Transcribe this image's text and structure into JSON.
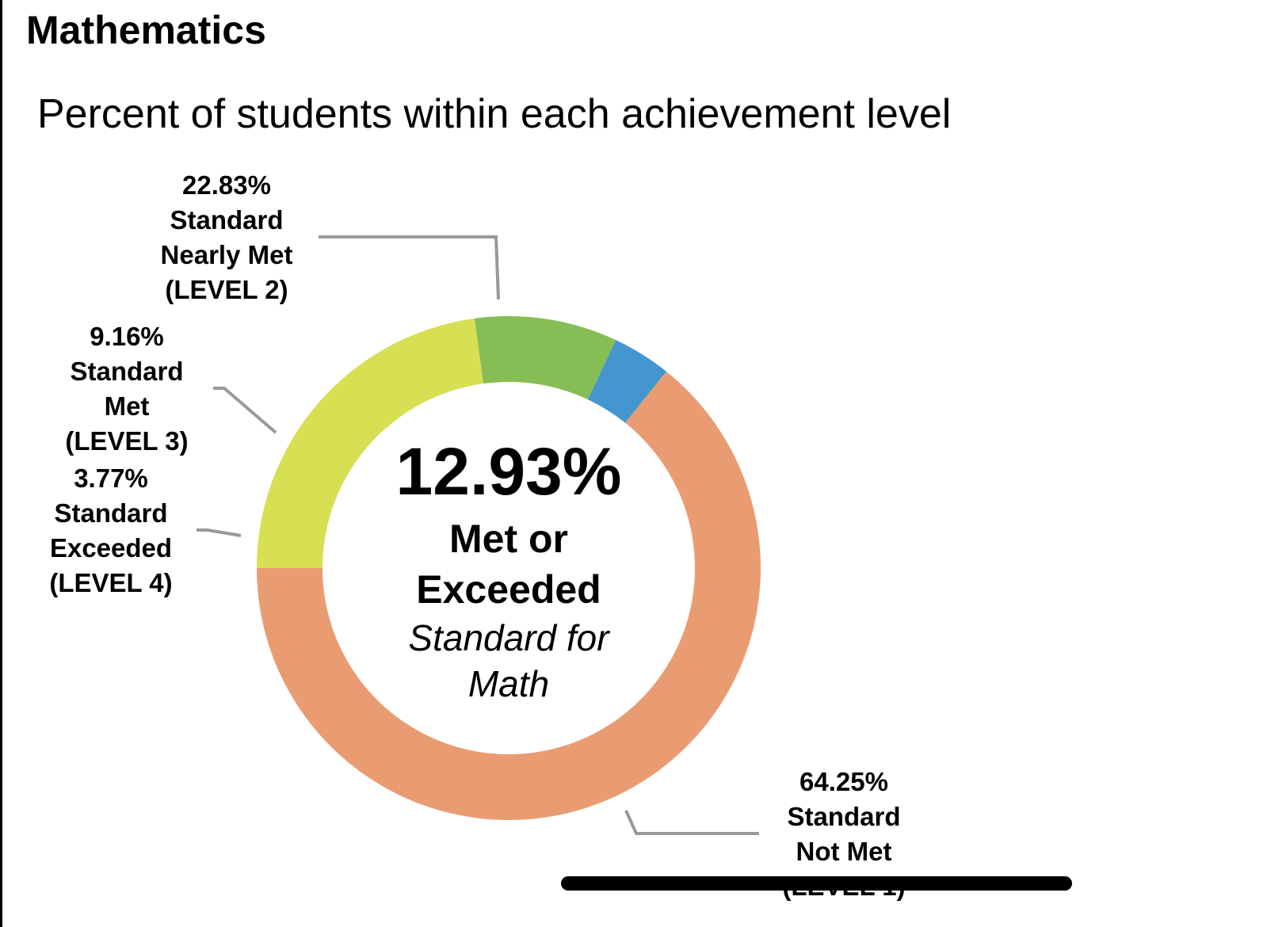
{
  "header": {
    "title": "Mathematics",
    "subtitle": "Percent of students within each achievement level"
  },
  "chart_data": {
    "type": "pie",
    "variant": "donut",
    "title": "Percent of students within each achievement level",
    "unit": "%",
    "slices": [
      {
        "name": "Standard Not Met (LEVEL 1)",
        "value": 64.25,
        "label_lines": [
          "64.25%",
          "Standard",
          "Not Met",
          "(LEVEL 1)"
        ],
        "color": "#E99C72"
      },
      {
        "name": "Standard Exceeded (LEVEL 4)",
        "value": 3.77,
        "label_lines": [
          "3.77%",
          "Standard",
          "Exceeded",
          "(LEVEL 4)"
        ],
        "color": "#4596CE"
      },
      {
        "name": "Standard Met (LEVEL 3)",
        "value": 9.16,
        "label_lines": [
          "9.16%",
          "Standard",
          "Met",
          "(LEVEL 3)"
        ],
        "color": "#86BE55"
      },
      {
        "name": "Standard Nearly Met (LEVEL 2)",
        "value": 22.83,
        "label_lines": [
          "22.83%",
          "Standard",
          "Nearly Met",
          "(LEVEL 2)"
        ],
        "color": "#D7DF53"
      }
    ],
    "center": {
      "value": "12.93%",
      "line1": "Met or",
      "line2": "Exceeded",
      "line3": "Standard for",
      "line4": "Math"
    },
    "leader_line_color": "#999999"
  }
}
